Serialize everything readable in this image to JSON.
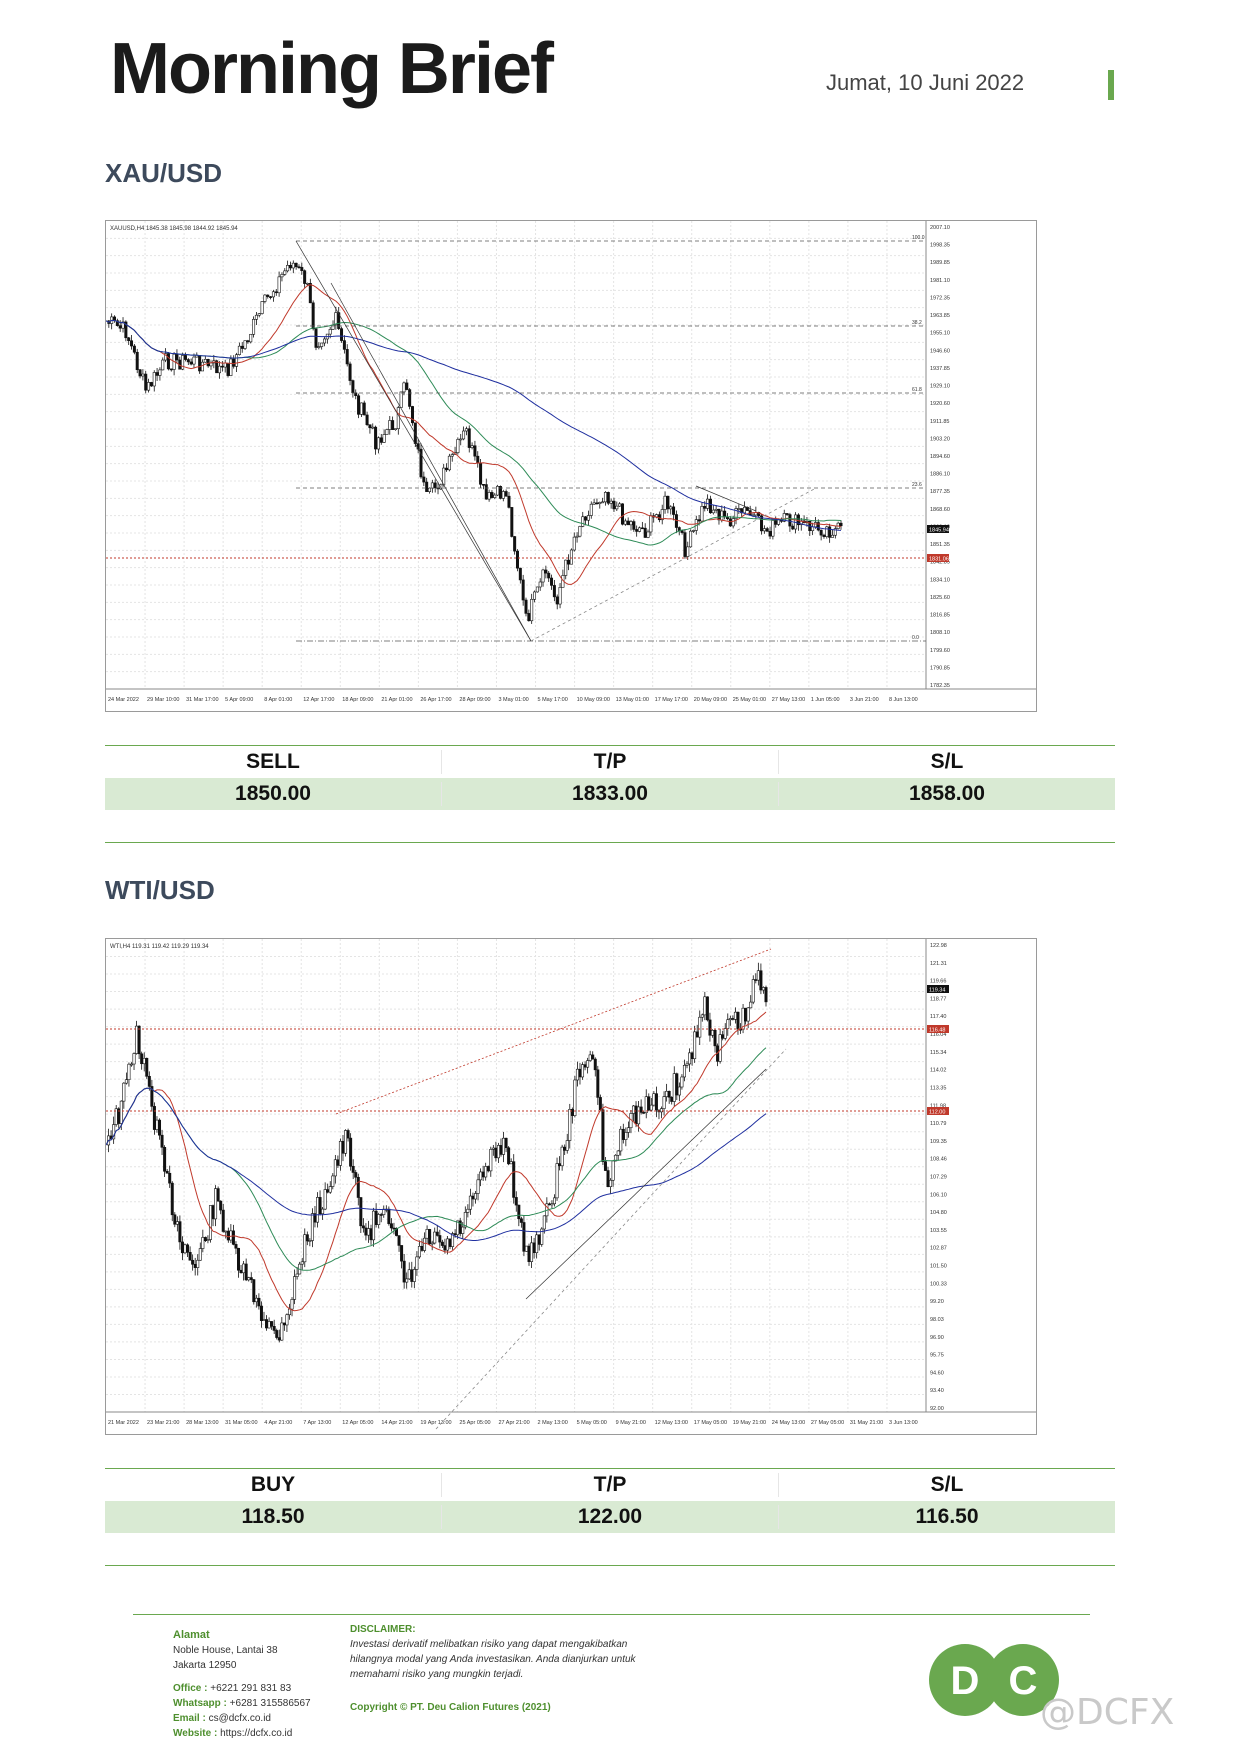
{
  "header": {
    "title": "Morning Brief",
    "date": "Jumat, 10 Juni 2022"
  },
  "gold": {
    "section_title": "XAU/USD",
    "chart_label": "XAUUSD,H4 1845.38 1845.98 1844.92 1845.94",
    "x_labels": [
      "24 Mar 2022",
      "29 Mar 10:00",
      "31 Mar 17:00",
      "5 Apr 09:00",
      "8 Apr 01:00",
      "12 Apr 17:00",
      "18 Apr 09:00",
      "21 Apr 01:00",
      "26 Apr 17:00",
      "28 Apr 09:00",
      "3 May 01:00",
      "5 May 17:00",
      "10 May 09:00",
      "13 May 01:00",
      "17 May 17:00",
      "20 May 09:00",
      "25 May 01:00",
      "27 May 13:00",
      "1 Jun 05:00",
      "3 Jun 21:00",
      "8 Jun 13:00"
    ],
    "y_labels": [
      "2007.10",
      "1998.35",
      "1989.85",
      "1981.10",
      "1972.35",
      "1963.85",
      "1955.10",
      "1946.60",
      "1937.85",
      "1929.10",
      "1920.60",
      "1911.85",
      "1903.20",
      "1894.60",
      "1886.10",
      "1877.35",
      "1868.60",
      "1860.10",
      "1851.35",
      "1842.85",
      "1834.10",
      "1825.60",
      "1816.85",
      "1808.10",
      "1799.60",
      "1790.85",
      "1782.35"
    ],
    "fib_labels": [
      "100.0",
      "38.2",
      "61.8",
      "23.6",
      "0.0"
    ],
    "price_tag": "1845.94",
    "red_tag": "1831.06",
    "trade": {
      "h1": "SELL",
      "h2": "T/P",
      "h3": "S/L",
      "v1": "1850.00",
      "v2": "1833.00",
      "v3": "1858.00"
    }
  },
  "oil": {
    "section_title": "WTI/USD",
    "chart_label": "WTI,H4 119.31 119.42 119.29 119.34",
    "x_labels": [
      "21 Mar 2022",
      "23 Mar 21:00",
      "28 Mar 13:00",
      "31 Mar 05:00",
      "4 Apr 21:00",
      "7 Apr 13:00",
      "12 Apr 05:00",
      "14 Apr 21:00",
      "19 Apr 13:00",
      "25 Apr 05:00",
      "27 Apr 21:00",
      "2 May 13:00",
      "5 May 05:00",
      "9 May 21:00",
      "12 May 13:00",
      "17 May 05:00",
      "19 May 21:00",
      "24 May 13:00",
      "27 May 05:00",
      "31 May 21:00",
      "3 Jun 13:00"
    ],
    "y_labels": [
      "122.98",
      "121.31",
      "119.66",
      "118.77",
      "117.40",
      "116.04",
      "115.34",
      "114.02",
      "113.35",
      "111.98",
      "110.79",
      "109.35",
      "108.46",
      "107.29",
      "106.10",
      "104.80",
      "103.55",
      "102.87",
      "101.50",
      "100.33",
      "99.20",
      "98.03",
      "96.90",
      "95.75",
      "94.60",
      "93.40",
      "92.00"
    ],
    "price_tag": "119.34",
    "red_tag_upper": "116.48",
    "red_tag_lower": "112.00",
    "trade": {
      "h1": "BUY",
      "h2": "T/P",
      "h3": "S/L",
      "v1": "118.50",
      "v2": "122.00",
      "v3": "116.50"
    }
  },
  "footer": {
    "address_title": "Alamat",
    "address_1": "Noble House, Lantai 38",
    "address_2": "Jakarta 12950",
    "office_label": "Office :",
    "office": "+6221 291 831 83",
    "wa_label": "Whatsapp :",
    "wa": "+6281 315586567",
    "email_label": "Email :",
    "email": "cs@dcfx.co.id",
    "web_label": "Website :",
    "web": "https://dcfx.co.id",
    "disclaimer_title": "DISCLAIMER:",
    "disclaimer_1": "Investasi derivatif melibatkan risiko yang dapat mengakibatkan",
    "disclaimer_2": "hilangnya modal yang Anda investasikan. Anda dianjurkan untuk",
    "disclaimer_3": "memahami risiko yang mungkin terjadi.",
    "copyright": "Copyright © PT. Deu Calion Futures (2021)",
    "logo_text": "DC",
    "watermark": "@DCFX"
  },
  "colors": {
    "green": "#6aa84f",
    "band": "#d9ead3",
    "ma_red": "#c0392b",
    "ma_green": "#2e8b57",
    "ma_blue": "#1f2f9f"
  }
}
